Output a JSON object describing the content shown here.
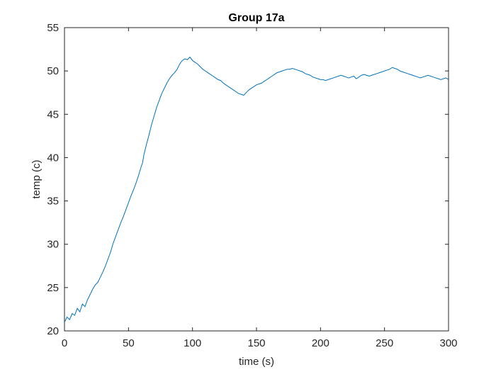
{
  "chart_data": {
    "type": "line",
    "title": "Group 17a",
    "xlabel": "time (s)",
    "ylabel": "temp (c)",
    "xlim": [
      0,
      300
    ],
    "ylim": [
      20,
      55
    ],
    "xticks": [
      "0",
      "50",
      "100",
      "150",
      "200",
      "250",
      "300"
    ],
    "yticks": [
      "20",
      "25",
      "30",
      "35",
      "40",
      "45",
      "50",
      "55"
    ],
    "grid": false,
    "box": true,
    "line_color": "#0072BD",
    "series": [
      {
        "x": [
          0,
          2,
          4,
          6,
          8,
          10,
          12,
          14,
          16,
          18,
          20,
          22,
          24,
          26,
          28,
          30,
          32,
          34,
          36,
          38,
          40,
          42,
          44,
          46,
          48,
          50,
          52,
          54,
          56,
          58,
          60,
          61,
          62,
          64,
          66,
          68,
          70,
          72,
          74,
          76,
          78,
          80,
          82,
          84,
          86,
          88,
          90,
          92,
          94,
          96,
          98,
          100,
          102,
          104,
          106,
          108,
          110,
          112,
          114,
          116,
          118,
          120,
          122,
          124,
          126,
          128,
          130,
          132,
          134,
          136,
          138,
          140,
          142,
          144,
          146,
          148,
          150,
          152,
          154,
          156,
          158,
          160,
          162,
          164,
          166,
          168,
          170,
          172,
          174,
          176,
          178,
          180,
          182,
          184,
          186,
          188,
          190,
          192,
          194,
          196,
          198,
          200,
          202,
          204,
          206,
          208,
          210,
          212,
          214,
          216,
          218,
          220,
          222,
          224,
          226,
          228,
          230,
          232,
          234,
          236,
          238,
          240,
          242,
          244,
          246,
          248,
          250,
          252,
          254,
          256,
          258,
          260,
          262,
          264,
          266,
          268,
          270,
          272,
          274,
          276,
          278,
          280,
          282,
          284,
          286,
          288,
          290,
          292,
          294,
          296,
          298,
          300
        ],
        "y": [
          21.0,
          21.6,
          21.3,
          22.0,
          21.8,
          22.6,
          22.2,
          23.1,
          22.8,
          23.6,
          24.2,
          24.8,
          25.3,
          25.6,
          26.2,
          26.8,
          27.5,
          28.3,
          29.1,
          30.1,
          30.9,
          31.7,
          32.5,
          33.2,
          34.0,
          34.8,
          35.6,
          36.3,
          37.1,
          38.0,
          39.0,
          39.4,
          40.3,
          41.5,
          42.6,
          43.8,
          44.8,
          45.8,
          46.6,
          47.4,
          48.0,
          48.6,
          49.1,
          49.5,
          49.8,
          50.2,
          50.8,
          51.2,
          51.4,
          51.3,
          51.6,
          51.2,
          51.0,
          50.8,
          50.5,
          50.2,
          50.0,
          49.8,
          49.6,
          49.4,
          49.2,
          49.0,
          48.9,
          48.6,
          48.4,
          48.2,
          48.0,
          47.8,
          47.6,
          47.4,
          47.3,
          47.2,
          47.5,
          47.8,
          48.0,
          48.2,
          48.4,
          48.5,
          48.6,
          48.8,
          49.0,
          49.2,
          49.4,
          49.6,
          49.8,
          49.9,
          50.0,
          50.1,
          50.2,
          50.2,
          50.3,
          50.2,
          50.1,
          50.0,
          49.9,
          49.7,
          49.6,
          49.5,
          49.3,
          49.2,
          49.1,
          49.0,
          49.0,
          48.9,
          49.0,
          49.1,
          49.2,
          49.3,
          49.4,
          49.5,
          49.4,
          49.3,
          49.2,
          49.3,
          49.4,
          49.1,
          49.3,
          49.5,
          49.6,
          49.5,
          49.4,
          49.5,
          49.6,
          49.7,
          49.8,
          49.9,
          50.0,
          50.1,
          50.2,
          50.4,
          50.3,
          50.2,
          50.0,
          49.9,
          49.8,
          49.7,
          49.6,
          49.5,
          49.4,
          49.3,
          49.2,
          49.3,
          49.4,
          49.5,
          49.4,
          49.3,
          49.2,
          49.1,
          49.0,
          49.1,
          49.2,
          49.0
        ]
      }
    ]
  }
}
